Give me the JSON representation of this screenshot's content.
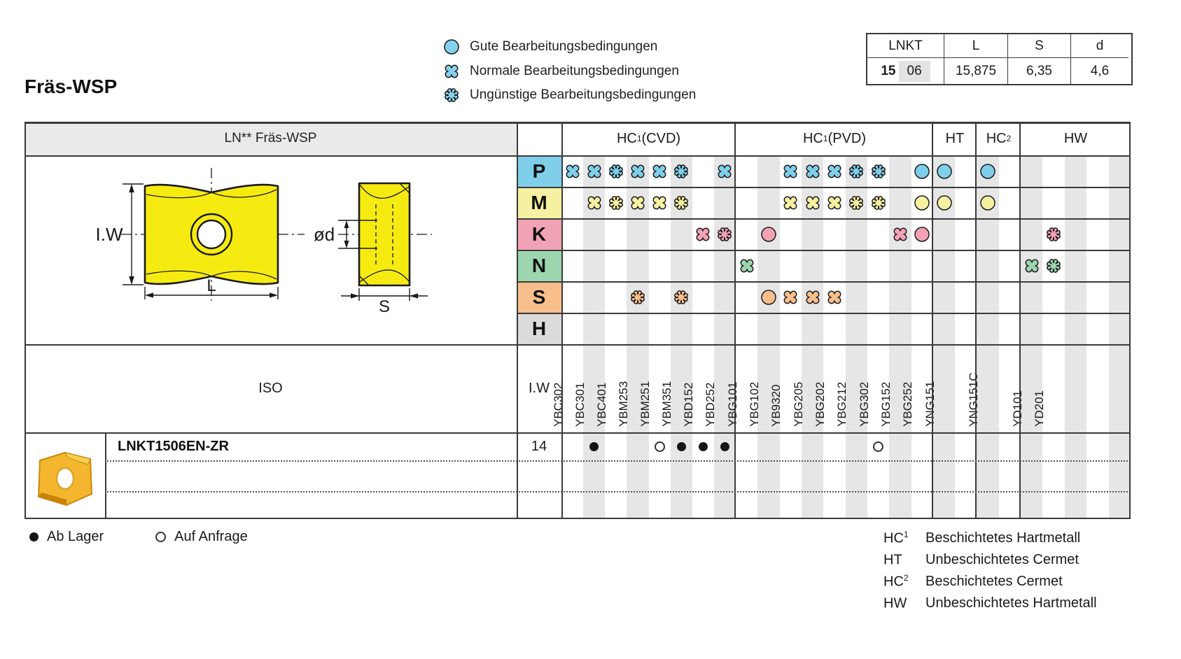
{
  "page_title": "Fräs-WSP",
  "condition_legend": {
    "symbol_color": "#86d1ec",
    "items": [
      {
        "symbol": "good",
        "label": "Gute Bearbeitungsbedingungen"
      },
      {
        "symbol": "normal",
        "label": "Normale Bearbeitungsbedingungen"
      },
      {
        "symbol": "unfavorable",
        "label": "Ungünstige Bearbeitungsbedingungen"
      }
    ]
  },
  "dimension_table": {
    "headers": [
      "LNKT",
      "L",
      "S",
      "d"
    ],
    "row": {
      "size_main": "15",
      "size_sub": "06",
      "L": "15,875",
      "S": "6,35",
      "d": "4,6"
    }
  },
  "main_table": {
    "left_header": "LN** Fräs-WSP",
    "iso_label": "ISO",
    "iw_label": "I.W",
    "sections": [
      {
        "id": "cvd",
        "label_base": "HC",
        "label_sup": "1",
        "label_rest": " (CVD)",
        "grades": [
          "YBC302",
          "YBC301",
          "YBC401",
          "YBM253",
          "YBM251",
          "YBM351",
          "YBD152",
          "YBD252"
        ]
      },
      {
        "id": "pvd",
        "label_base": "HC",
        "label_sup": "1",
        "label_rest": " (PVD)",
        "grades": [
          "YBG101",
          "YBG102",
          "YB9320",
          "YBG205",
          "YBG202",
          "YBG212",
          "YBG302",
          "YBG152",
          "YBG252"
        ]
      },
      {
        "id": "ht",
        "label_base": "HT",
        "label_sup": "",
        "label_rest": "",
        "grades": [
          "YNG151",
          ""
        ]
      },
      {
        "id": "hc2",
        "label_base": "HC",
        "label_sup": "2",
        "label_rest": "",
        "grades": [
          "YNG151C",
          ""
        ]
      },
      {
        "id": "hw",
        "label_base": "HW",
        "label_sup": "",
        "label_rest": "",
        "grades": [
          "YD101",
          "YD201",
          "",
          "",
          ""
        ]
      }
    ],
    "classes": [
      {
        "letter": "P",
        "color": "#7fceea",
        "marks": {
          "YBC302": "normal",
          "YBC301": "normal",
          "YBC401": "unfavorable",
          "YBM253": "normal",
          "YBM251": "normal",
          "YBM351": "unfavorable",
          "YBD252": "normal",
          "YB9320": "normal",
          "YBG205": "normal",
          "YBG202": "normal",
          "YBG212": "unfavorable",
          "YBG302": "unfavorable",
          "YBG252": "good",
          "YNG151": "good",
          "YNG151C": "good"
        }
      },
      {
        "letter": "M",
        "color": "#f6f0a2",
        "marks": {
          "YBC301": "normal",
          "YBC401": "unfavorable",
          "YBM253": "normal",
          "YBM251": "normal",
          "YBM351": "unfavorable",
          "YB9320": "normal",
          "YBG205": "normal",
          "YBG202": "normal",
          "YBG212": "unfavorable",
          "YBG302": "unfavorable",
          "YBG252": "good",
          "YNG151": "good",
          "YNG151C": "good"
        }
      },
      {
        "letter": "K",
        "color": "#f2a2b5",
        "marks": {
          "YBD152": "normal",
          "YBD252": "unfavorable",
          "YBG102": "good",
          "YBG152": "normal",
          "YBG252": "good",
          "YD201": "unfavorable"
        }
      },
      {
        "letter": "N",
        "color": "#9cd5ae",
        "marks": {
          "YBG101": "normal",
          "YD101": "normal",
          "YD201": "unfavorable"
        }
      },
      {
        "letter": "S",
        "color": "#f8bf8c",
        "marks": {
          "YBM253": "unfavorable",
          "YBM351": "unfavorable",
          "YBG102": "good",
          "YB9320": "normal",
          "YBG205": "normal",
          "YBG202": "normal"
        }
      },
      {
        "letter": "H",
        "color": "#dbdbdb",
        "marks": {}
      }
    ],
    "products": [
      {
        "designation": "LNKT1506EN-ZR",
        "iw": "14",
        "availability": {
          "YBC301": "stock",
          "YBM251": "request",
          "YBM351": "stock",
          "YBD152": "stock",
          "YBD252": "stock",
          "YBG302": "request"
        }
      }
    ]
  },
  "drawing": {
    "labels": {
      "iw": "I.W",
      "l": "L",
      "od": "ød",
      "s": "S"
    },
    "insert_color": "#f6eb11"
  },
  "availability_legend": {
    "stock": "Ab Lager",
    "request": "Auf Anfrage"
  },
  "material_legend": [
    {
      "term_base": "HC",
      "term_sup": "1",
      "definition": "Beschichtetes Hartmetall"
    },
    {
      "term_base": "HT",
      "term_sup": "",
      "definition": "Unbeschichtetes Cermet"
    },
    {
      "term_base": "HC",
      "term_sup": "2",
      "definition": "Beschichtetes Cermet"
    },
    {
      "term_base": "HW",
      "term_sup": "",
      "definition": "Unbeschichtetes Hartmetall"
    }
  ],
  "colors": {
    "stripe": "#e6e6e6",
    "header_gray": "#eaeaea",
    "grid": "#3a3a3a",
    "symbol_outline": "#1a1a1a"
  }
}
